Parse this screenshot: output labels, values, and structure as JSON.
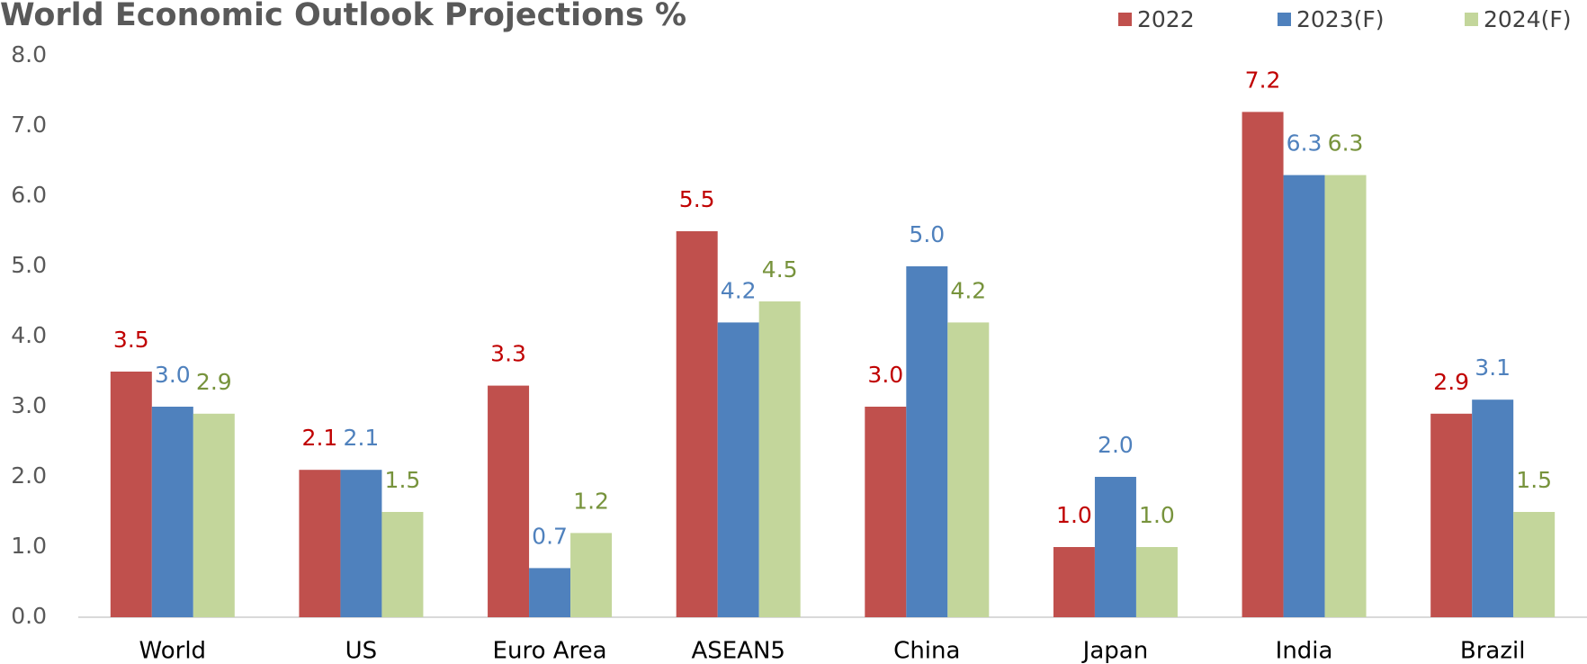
{
  "chart_data": {
    "type": "bar",
    "title": "World Economic Outlook Projections %",
    "categories": [
      "World",
      "US",
      "Euro Area",
      "ASEAN5",
      "China",
      "Japan",
      "India",
      "Brazil"
    ],
    "series": [
      {
        "name": "2022",
        "color": "#c0504d",
        "label_color": "#c00000",
        "values": [
          3.5,
          2.1,
          3.3,
          5.5,
          3.0,
          1.0,
          7.2,
          2.9
        ],
        "value_labels": [
          "3.5",
          "2.1",
          "3.3",
          "5.5",
          "3.0",
          "1.0",
          "7.2",
          "2.9"
        ]
      },
      {
        "name": "2023(F)",
        "color": "#4f81bd",
        "label_color": "#4f81bd",
        "values": [
          3.0,
          2.1,
          0.7,
          4.2,
          5.0,
          2.0,
          6.3,
          3.1
        ],
        "value_labels": [
          "3.0",
          "2.1",
          "0.7",
          "4.2",
          "5.0",
          "2.0",
          "6.3",
          "3.1"
        ]
      },
      {
        "name": "2024(F)",
        "color": "#c3d69b",
        "label_color": "#77933c",
        "values": [
          2.9,
          1.5,
          1.2,
          4.5,
          4.2,
          1.0,
          6.3,
          1.5
        ],
        "value_labels": [
          "2.9",
          "1.5",
          "1.2",
          "4.5",
          "4.2",
          "1.0",
          "6.3",
          "1.5"
        ]
      }
    ],
    "ylim": [
      0,
      8
    ],
    "yticks": [
      {
        "value": 0,
        "label": "0.0"
      },
      {
        "value": 1,
        "label": "1.0"
      },
      {
        "value": 2,
        "label": "2.0"
      },
      {
        "value": 3,
        "label": "3.0"
      },
      {
        "value": 4,
        "label": "4.0"
      },
      {
        "value": 5,
        "label": "5.0"
      },
      {
        "value": 6,
        "label": "6.0"
      },
      {
        "value": 7,
        "label": "7.0"
      },
      {
        "value": 8,
        "label": "8.0"
      }
    ],
    "grid": false,
    "legend": "top-right"
  }
}
